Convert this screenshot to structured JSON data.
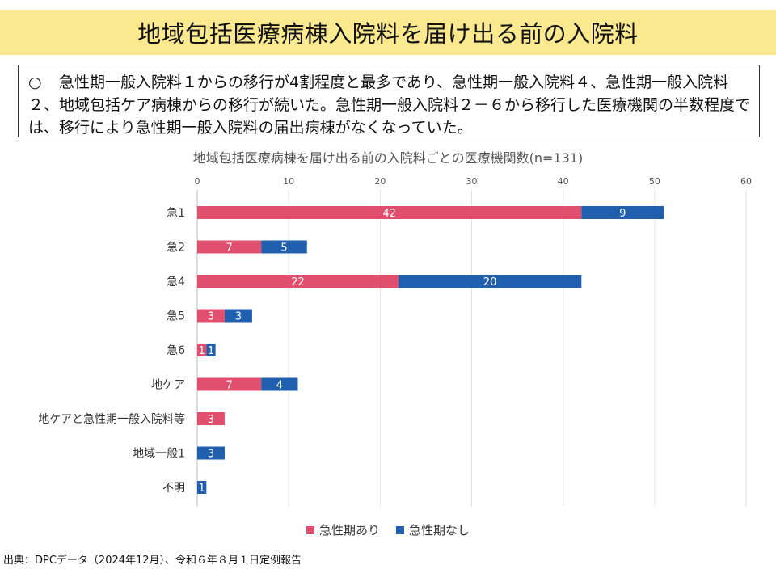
{
  "page": {
    "title": "地域包括医療病棟入院料を届け出る前の入院料",
    "summary_bullet": "○",
    "summary_text": "急性期一般入院料１からの移行が4割程度と最多であり、急性期一般入院料４、急性期一般入院料２、地域包括ケア病棟からの移行が続いた。急性期一般入院料２－６から移行した医療機関の半数程度では、移行により急性期一般入院料の届出病棟がなくなっていた。",
    "source": "出典：DPCデータ（2024年12月）、令和６年８月１日定例報告"
  },
  "colors": {
    "with_acute": "#e0506e",
    "without_acute": "#1f5fae",
    "title_bg": "#fbe98f"
  },
  "chart_data": {
    "type": "bar",
    "orientation": "horizontal",
    "stacked": true,
    "title": "地域包括医療病棟を届け出る前の入院料ごとの医療機関数(n=131)",
    "categories": [
      "急1",
      "急2",
      "急4",
      "急5",
      "急6",
      "地ケア",
      "地ケアと急性期一般入院料等",
      "地域一般1",
      "不明"
    ],
    "series": [
      {
        "name": "急性期あり",
        "values": [
          42,
          7,
          22,
          3,
          1,
          7,
          3,
          0,
          0
        ]
      },
      {
        "name": "急性期なし",
        "values": [
          9,
          5,
          20,
          3,
          1,
          4,
          0,
          3,
          1
        ]
      }
    ],
    "xlim": [
      0,
      60
    ],
    "xticks": [
      0,
      10,
      20,
      30,
      40,
      50,
      60
    ],
    "grid": true,
    "legend_position": "bottom"
  }
}
